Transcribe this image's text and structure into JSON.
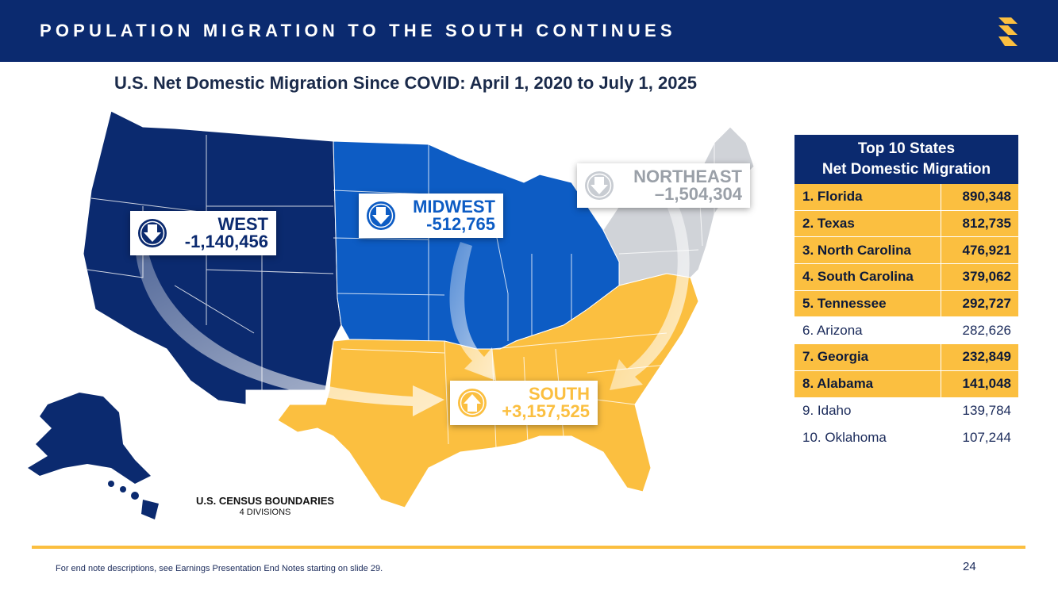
{
  "header": {
    "title": "POPULATION MIGRATION TO THE SOUTH CONTINUES",
    "logo_icon": "s-logo-icon",
    "accent": "#fbbf40",
    "bg": "#0b2a6f"
  },
  "subtitle": "U.S. Net Domestic Migration Since COVID: April 1, 2020 to July 1, 2025",
  "regions": {
    "west": {
      "name": "WEST",
      "value": "-1,140,456",
      "color": "#0b2a6f",
      "icon": "arrow-down-icon"
    },
    "midwest": {
      "name": "MIDWEST",
      "value": "-512,765",
      "color": "#0d5cc4",
      "icon": "arrow-down-icon"
    },
    "northeast": {
      "name": "NORTHEAST",
      "value": "–1,504,304",
      "color": "#d0d3d8",
      "icon": "arrow-down-icon"
    },
    "south": {
      "name": "SOUTH",
      "value": "+3,157,525",
      "color": "#fbbf40",
      "icon": "arrow-up-icon"
    }
  },
  "census": {
    "title": "U.S. CENSUS BOUNDARIES",
    "sub": "4 DIVISIONS"
  },
  "top10": {
    "title_line1": "Top 10 States",
    "title_line2": "Net Domestic Migration",
    "rows": [
      {
        "state": "1. Florida",
        "value": "890,348",
        "south": true
      },
      {
        "state": "2. Texas",
        "value": "812,735",
        "south": true
      },
      {
        "state": "3. North Carolina",
        "value": "476,921",
        "south": true
      },
      {
        "state": "4. South Carolina",
        "value": "379,062",
        "south": true
      },
      {
        "state": "5. Tennessee",
        "value": "292,727",
        "south": true
      },
      {
        "state": "6. Arizona",
        "value": "282,626",
        "south": false
      },
      {
        "state": "7. Georgia",
        "value": "232,849",
        "south": true
      },
      {
        "state": "8. Alabama",
        "value": "141,048",
        "south": true
      },
      {
        "state": "9. Idaho",
        "value": "139,784",
        "south": false
      },
      {
        "state": "10. Oklahoma",
        "value": "107,244",
        "south": false
      }
    ]
  },
  "footer": {
    "note": "For end note descriptions, see Earnings Presentation End Notes starting on slide 29.",
    "page": "24"
  }
}
